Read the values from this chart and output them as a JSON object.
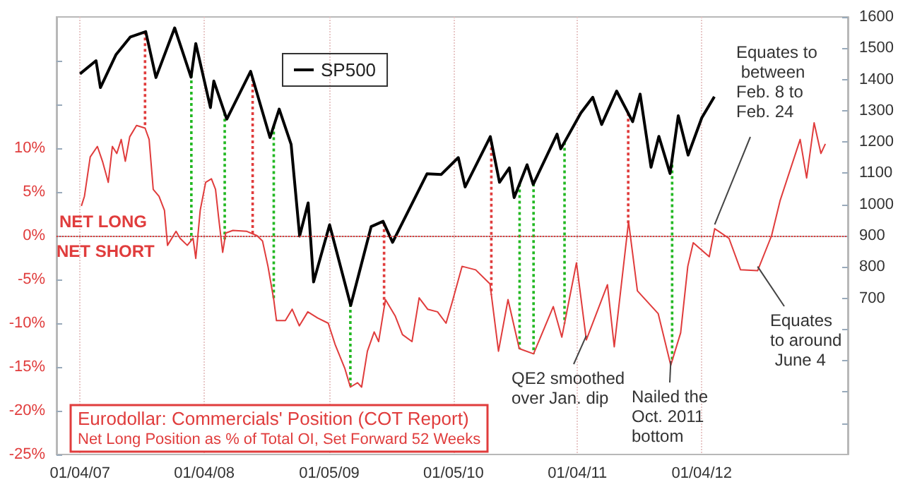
{
  "chart_data": {
    "type": "line",
    "title": "Eurodollar: Commercials' Position (COT Report)",
    "subtitle": "Net Long Position as % of Total OI, Set Forward 52 Weeks",
    "series": [
      {
        "color": "#e03c3c",
        "x": [
          "2007-01-08",
          "2007-01-17",
          "2007-02-03",
          "2007-02-24",
          "2007-03-11",
          "2007-03-28",
          "2007-04-09",
          "2007-04-22",
          "2007-05-05",
          "2007-05-17",
          "2007-05-30",
          "2007-06-19",
          "2007-07-14",
          "2007-07-26",
          "2007-08-07",
          "2007-08-24",
          "2007-09-09",
          "2007-09-18",
          "2007-10-13",
          "2007-10-25",
          "2007-11-15",
          "2007-12-02",
          "2007-12-10",
          "2007-12-23",
          "2008-01-08",
          "2008-01-25",
          "2008-02-06",
          "2008-02-15",
          "2008-02-27",
          "2008-03-07",
          "2008-03-28",
          "2008-05-08",
          "2008-06-07",
          "2008-06-23",
          "2008-07-09",
          "2008-07-26",
          "2008-08-03",
          "2008-08-29",
          "2008-09-18",
          "2008-10-09",
          "2008-11-03",
          "2008-12-02",
          "2009-01-02",
          "2009-01-22",
          "2009-02-20",
          "2009-03-08",
          "2009-03-29",
          "2009-04-10",
          "2009-04-27",
          "2009-05-17",
          "2009-05-30",
          "2009-06-19",
          "2009-07-18",
          "2009-08-08",
          "2009-09-05",
          "2009-09-26",
          "2009-10-21",
          "2009-11-19",
          "2009-12-14",
          "2010-01-01",
          "2010-01-30",
          "2010-03-11",
          "2010-04-22",
          "2010-05-17",
          "2010-06-14",
          "2010-07-17",
          "2010-08-28",
          "2010-10-25",
          "2010-11-19",
          "2011-01-01",
          "2011-01-30",
          "2011-04-02",
          "2011-04-22",
          "2011-06-03",
          "2011-06-29",
          "2011-08-29",
          "2011-10-05",
          "2011-11-03",
          "2011-11-24",
          "2011-12-10",
          "2012-01-26",
          "2012-02-11",
          "2012-03-24",
          "2012-04-27",
          "2012-06-16",
          "2012-07-27",
          "2012-08-21",
          "2012-10-19",
          "2012-11-07",
          "2012-11-29",
          "2012-12-19",
          "2013-01-01"
        ],
        "values": [
          3.4,
          4.5,
          9,
          10.2,
          8.5,
          6.1,
          10.2,
          9.4,
          11,
          8.5,
          11.3,
          12.6,
          12.3,
          11,
          5.3,
          4.5,
          2.9,
          -1.1,
          0.5,
          -0.3,
          -1.1,
          -0.3,
          -2.6,
          2.9,
          6.1,
          6.5,
          5.3,
          2.1,
          -1.9,
          0.3,
          0.6,
          0.5,
          0,
          -0.6,
          -3.5,
          -7.3,
          -9.7,
          -9.7,
          -8.4,
          -10.3,
          -8.7,
          -9.4,
          -10,
          -12.4,
          -15.2,
          -17.3,
          -16.8,
          -17.3,
          -13.2,
          -11,
          -12.1,
          -7.3,
          -9.2,
          -11.3,
          -12.1,
          -7.1,
          -8.4,
          -8.7,
          -10,
          -7.6,
          -3.5,
          -3.9,
          -5.5,
          -13.2,
          -7.3,
          -12.9,
          -13.5,
          -8.1,
          -11.6,
          -3.1,
          -11.9,
          -5.6,
          -12.7,
          1.6,
          -6.3,
          -8.9,
          -14.8,
          -11.1,
          -3.5,
          -0.8,
          -2.4,
          0.8,
          -0.3,
          -3.9,
          -4,
          0,
          4,
          11,
          6.6,
          12.9,
          9.4,
          10.5
        ]
      },
      {
        "name": "SP500",
        "color": "#000000",
        "axis": "y2",
        "x": [
          "2007-01-04",
          "2007-02-20",
          "2007-03-05",
          "2007-04-20",
          "2007-06-01",
          "2007-07-16",
          "2007-08-15",
          "2007-10-09",
          "2007-11-26",
          "2007-12-10",
          "2008-01-22",
          "2008-02-01",
          "2008-03-10",
          "2008-05-19",
          "2008-07-15",
          "2008-08-11",
          "2008-09-15",
          "2008-10-10",
          "2008-11-04",
          "2008-11-20",
          "2009-01-06",
          "2009-03-09",
          "2009-05-08",
          "2009-06-12",
          "2009-07-10",
          "2009-10-19",
          "2009-11-30",
          "2010-01-19",
          "2010-02-08",
          "2010-04-23",
          "2010-05-20",
          "2010-06-18",
          "2010-07-02",
          "2010-08-09",
          "2010-08-27",
          "2010-11-05",
          "2010-11-16",
          "2011-01-14",
          "2011-02-18",
          "2011-03-16",
          "2011-04-29",
          "2011-06-15",
          "2011-07-07",
          "2011-08-08",
          "2011-08-31",
          "2011-10-03",
          "2011-10-27",
          "2011-11-25",
          "2012-01-04",
          "2012-02-10"
        ],
        "values": [
          1418,
          1460,
          1374,
          1480,
          1536,
          1553,
          1406,
          1565,
          1407,
          1515,
          1310,
          1395,
          1273,
          1426,
          1214,
          1305,
          1192,
          899,
          1005,
          752,
          935,
          677,
          929,
          946,
          879,
          1098,
          1096,
          1150,
          1056,
          1217,
          1071,
          1117,
          1022,
          1127,
          1064,
          1225,
          1178,
          1293,
          1343,
          1256,
          1363,
          1265,
          1353,
          1119,
          1218,
          1099,
          1284,
          1158,
          1277,
          1345
        ]
      }
    ],
    "xlim": [
      "2006-10-27",
      "2013-03-08"
    ],
    "xticks": [
      {
        "value": "2007-01-04",
        "label": "01/04/07"
      },
      {
        "value": "2008-01-04",
        "label": "01/04/08"
      },
      {
        "value": "2009-01-05",
        "label": "01/05/09"
      },
      {
        "value": "2010-01-05",
        "label": "01/05/10"
      },
      {
        "value": "2011-01-04",
        "label": "01/04/11"
      },
      {
        "value": "2012-01-04",
        "label": "01/04/12"
      }
    ],
    "ylim": [
      -25,
      25
    ],
    "yticks": [
      {
        "value": -25,
        "label": "-25%"
      },
      {
        "value": -20,
        "label": "-20%"
      },
      {
        "value": -15,
        "label": "-15%"
      },
      {
        "value": -10,
        "label": "-10%"
      },
      {
        "value": -5,
        "label": "-5%"
      },
      {
        "value": 0,
        "label": "0%"
      },
      {
        "value": 5,
        "label": "5%"
      },
      {
        "value": 10,
        "label": "10%"
      },
      {
        "value": 15,
        "label": null
      },
      {
        "value": 20,
        "label": null
      }
    ],
    "y2lim": [
      200,
      1600
    ],
    "y2ticks": [
      {
        "value": 300,
        "label": null
      },
      {
        "value": 400,
        "label": null
      },
      {
        "value": 500,
        "label": null
      },
      {
        "value": 600,
        "label": null
      },
      700,
      800,
      900,
      1000,
      1100,
      1200,
      1300,
      1400,
      1500,
      1600
    ],
    "ref_lines": [
      {
        "axis": "y",
        "value": 0,
        "color": "#e03c3c",
        "line_style": "dotted"
      },
      {
        "axis": "x",
        "value": "2007-07-14",
        "color": "#e03c3c",
        "line_style": "dotted"
      },
      {
        "axis": "x",
        "value": "2007-11-27",
        "color": "#22b822",
        "line_style": "dotted"
      },
      {
        "axis": "x",
        "value": "2008-03-04",
        "color": "#22b822",
        "line_style": "dotted"
      },
      {
        "axis": "x",
        "value": "2008-05-25",
        "color": "#e03c3c",
        "line_style": "dotted"
      },
      {
        "axis": "x",
        "value": "2008-07-26",
        "color": "#22b822",
        "line_style": "dotted"
      },
      {
        "axis": "x",
        "value": "2009-03-08",
        "color": "#22b822",
        "line_style": "dotted"
      },
      {
        "axis": "x",
        "value": "2009-06-15",
        "color": "#e03c3c",
        "line_style": "dotted"
      },
      {
        "axis": "x",
        "value": "2010-04-26",
        "color": "#e03c3c",
        "line_style": "dotted"
      },
      {
        "axis": "x",
        "value": "2010-07-18",
        "color": "#22b822",
        "line_style": "dotted"
      },
      {
        "axis": "x",
        "value": "2010-08-28",
        "color": "#22b822",
        "line_style": "dotted"
      },
      {
        "axis": "x",
        "value": "2010-11-27",
        "color": "#22b822",
        "line_style": "dotted"
      },
      {
        "axis": "x",
        "value": "2011-06-02",
        "color": "#e03c3c",
        "line_style": "dotted"
      },
      {
        "axis": "x",
        "value": "2011-10-09",
        "color": "#22b822",
        "line_style": "dotted"
      }
    ],
    "annotations": [
      "NET LONG",
      "NET SHORT",
      {
        "text": "Equates to between Feb. 8 to Feb. 24",
        "x": "2012-02-11",
        "y": 0.8
      },
      {
        "text": "Equates to around June 4",
        "x": "2012-06-16",
        "y": -4
      },
      {
        "text": "QE2 smoothed over Jan. dip",
        "x": "2011-01-30",
        "y": -11.9
      },
      {
        "text": "Nailed the Oct. 2011 bottom",
        "x": "2011-10-05",
        "y": -14.8
      }
    ],
    "grid": "x",
    "legend": "top left"
  }
}
